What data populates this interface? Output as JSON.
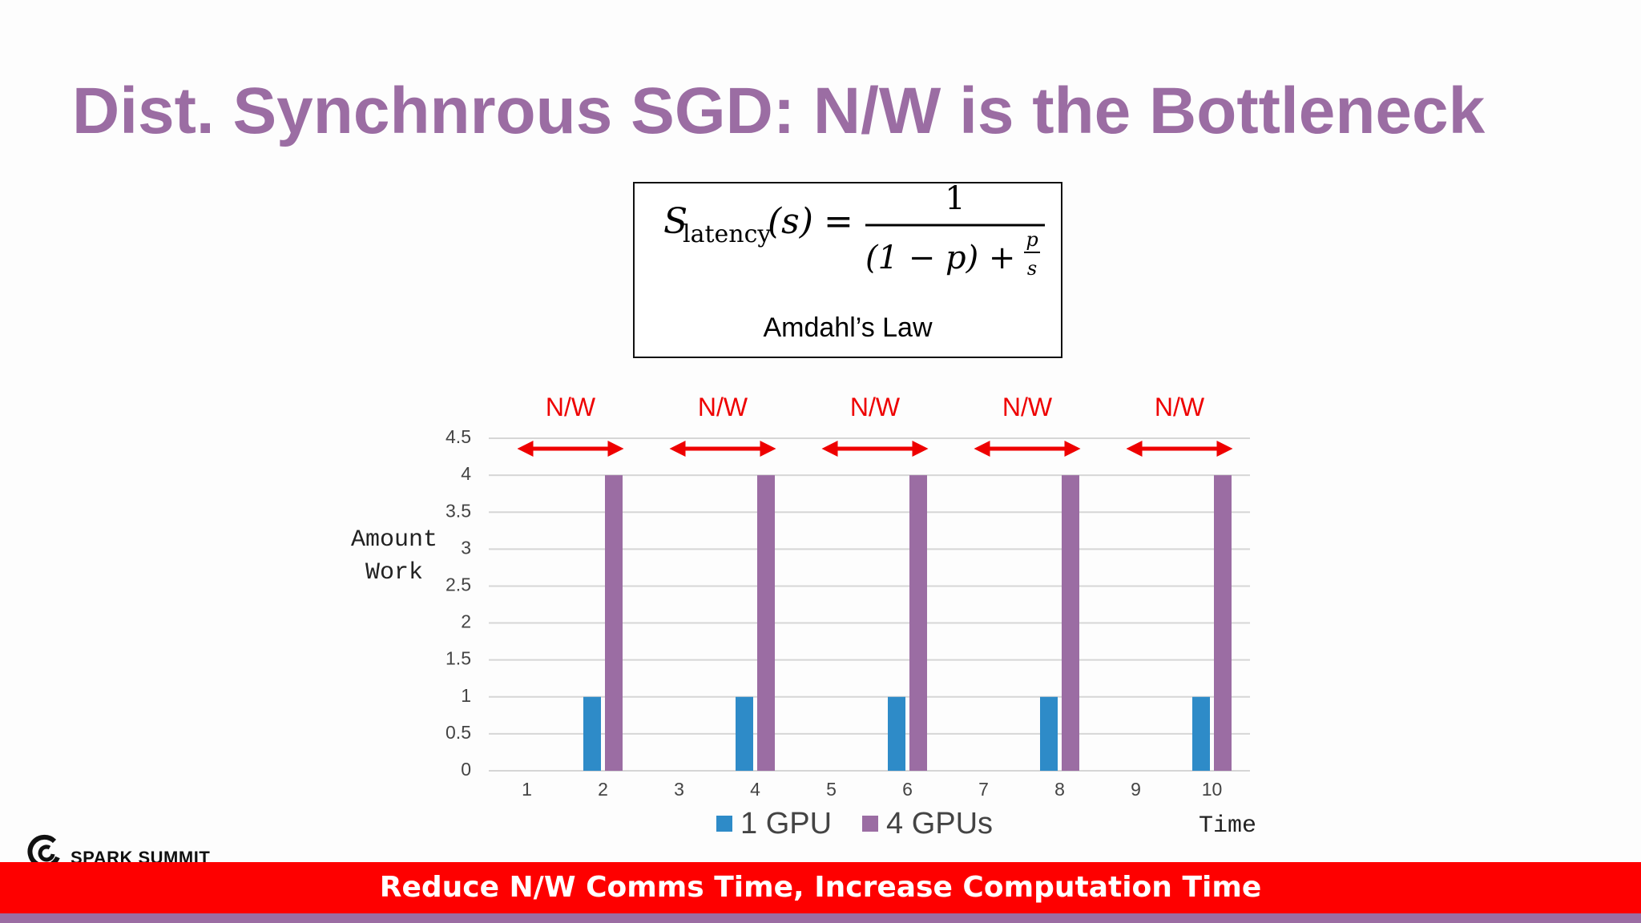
{
  "slide": {
    "title": "Dist. Synchnrous SGD: N/W is the Bottleneck",
    "banner": "Reduce N/W Comms Time, Increase Computation Time",
    "logo_text": "SPARK SUMMIT",
    "colors": {
      "title": "#9b6da3",
      "banner": "#fe0000",
      "strip": "#9b6da3"
    }
  },
  "formula": {
    "lhs_symbol": "S",
    "lhs_subscript": "latency",
    "lhs_arg": "(s)",
    "equals": "=",
    "numerator": "1",
    "denom_paren": "(1 − p) +",
    "frac_num": "p",
    "frac_den": "s",
    "caption": "Amdahl’s Law"
  },
  "chart_data": {
    "type": "bar",
    "categories": [
      "1",
      "2",
      "3",
      "4",
      "5",
      "6",
      "7",
      "8",
      "9",
      "10"
    ],
    "series": [
      {
        "name": "1 GPU",
        "color": "#2e8bc8",
        "values": [
          0,
          1,
          0,
          1,
          0,
          1,
          0,
          1,
          0,
          1
        ]
      },
      {
        "name": "4 GPUs",
        "color": "#9b6da3",
        "values": [
          0,
          4,
          0,
          4,
          0,
          4,
          0,
          4,
          0,
          4
        ]
      }
    ],
    "yticks": [
      "0",
      "0.5",
      "1",
      "1.5",
      "2",
      "2.5",
      "3",
      "3.5",
      "4",
      "4.5"
    ],
    "ylim": [
      0,
      4.5
    ],
    "ylabel_lines": [
      "Amount",
      "Work"
    ],
    "xlabel": "Time",
    "grid": true,
    "legend_position": "bottom",
    "annotations": [
      {
        "label": "N/W",
        "from": 0.5,
        "to": 1.9
      },
      {
        "label": "N/W",
        "from": 2.5,
        "to": 3.9
      },
      {
        "label": "N/W",
        "from": 4.5,
        "to": 5.9
      },
      {
        "label": "N/W",
        "from": 6.5,
        "to": 7.9
      },
      {
        "label": "N/W",
        "from": 8.5,
        "to": 9.9
      }
    ],
    "annotation_color": "#ee0000"
  }
}
